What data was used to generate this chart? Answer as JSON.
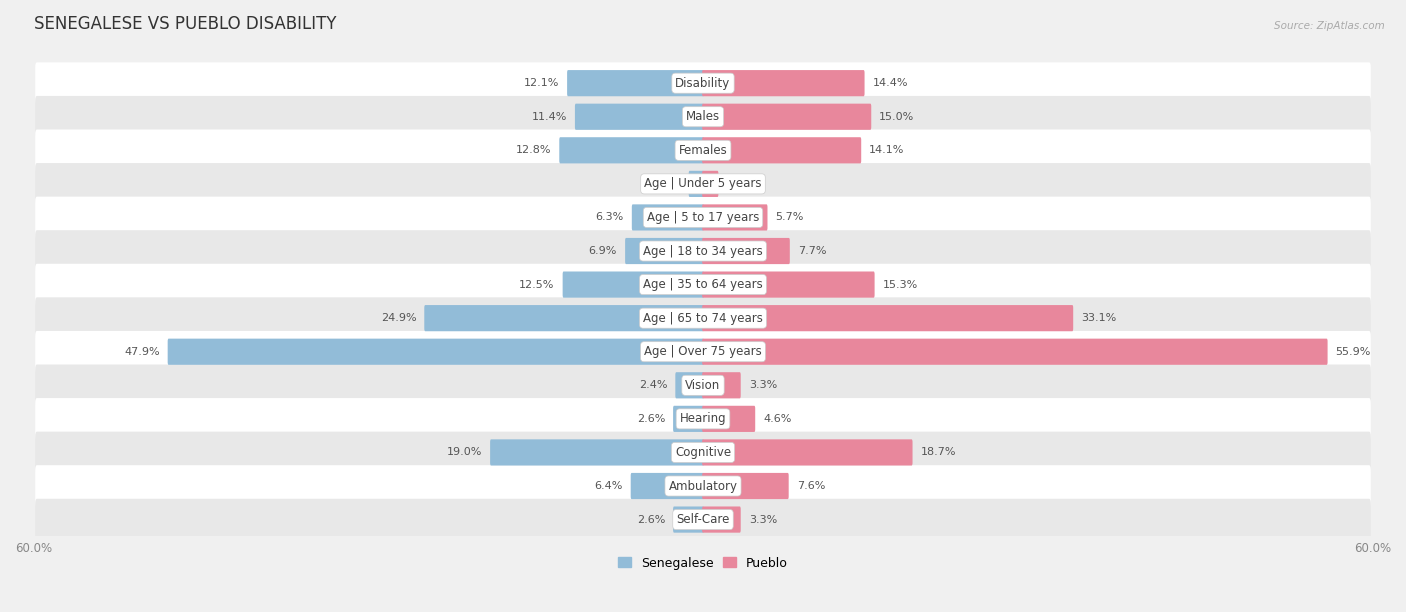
{
  "title": "SENEGALESE VS PUEBLO DISABILITY",
  "source": "Source: ZipAtlas.com",
  "categories": [
    "Disability",
    "Males",
    "Females",
    "Age | Under 5 years",
    "Age | 5 to 17 years",
    "Age | 18 to 34 years",
    "Age | 35 to 64 years",
    "Age | 65 to 74 years",
    "Age | Over 75 years",
    "Vision",
    "Hearing",
    "Cognitive",
    "Ambulatory",
    "Self-Care"
  ],
  "senegalese": [
    12.1,
    11.4,
    12.8,
    1.2,
    6.3,
    6.9,
    12.5,
    24.9,
    47.9,
    2.4,
    2.6,
    19.0,
    6.4,
    2.6
  ],
  "pueblo": [
    14.4,
    15.0,
    14.1,
    1.3,
    5.7,
    7.7,
    15.3,
    33.1,
    55.9,
    3.3,
    4.6,
    18.7,
    7.6,
    3.3
  ],
  "senegalese_color": "#92bcd8",
  "pueblo_color": "#e8879c",
  "axis_max": 60.0,
  "background_color": "#f0f0f0",
  "row_color_even": "#ffffff",
  "row_color_odd": "#e8e8e8",
  "title_fontsize": 12,
  "label_fontsize": 8.5,
  "value_fontsize": 8,
  "legend_labels": [
    "Senegalese",
    "Pueblo"
  ]
}
